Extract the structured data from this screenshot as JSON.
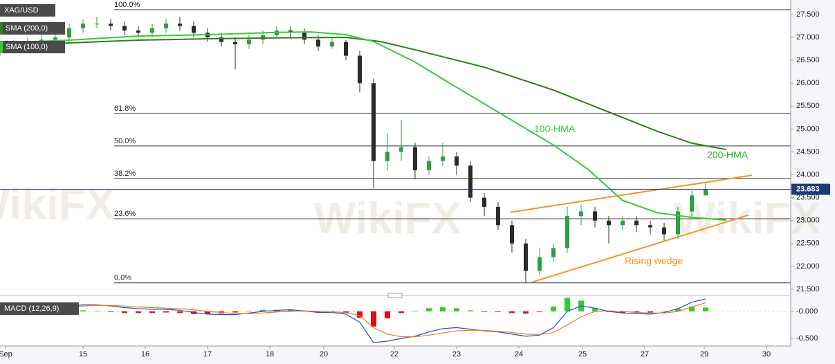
{
  "chart_data": [
    {
      "type": "candlestick",
      "title": "XAG/USD",
      "x": [
        0,
        2,
        4,
        6,
        8,
        10,
        12,
        14,
        16,
        18,
        20,
        22,
        24,
        26,
        28,
        30,
        32,
        34,
        36,
        38,
        40,
        42,
        44,
        46,
        48,
        50,
        52,
        54,
        56,
        58,
        60,
        62,
        64,
        66,
        68,
        70,
        72,
        74,
        76,
        78,
        80,
        82,
        84,
        86,
        88,
        90,
        92,
        94,
        96,
        98,
        100,
        102
      ],
      "open": [
        26.7,
        26.75,
        26.85,
        26.9,
        26.95,
        27.0,
        27.2,
        27.3,
        27.3,
        27.25,
        27.15,
        27.1,
        27.2,
        27.3,
        27.25,
        27.1,
        27.0,
        26.9,
        26.85,
        26.95,
        27.05,
        27.15,
        27.1,
        26.95,
        26.8,
        26.9,
        26.6,
        26.0,
        24.3,
        24.5,
        24.6,
        24.1,
        24.3,
        24.4,
        24.2,
        23.5,
        23.3,
        22.9,
        22.5,
        21.9,
        22.2,
        22.4,
        23.1,
        23.2,
        23.0,
        22.9,
        23.0,
        22.9,
        22.85,
        22.7,
        23.2,
        23.55
      ],
      "high": [
        26.85,
        26.95,
        27.0,
        27.05,
        27.1,
        27.3,
        27.4,
        27.45,
        27.4,
        27.35,
        27.25,
        27.3,
        27.4,
        27.45,
        27.35,
        27.2,
        27.1,
        27.0,
        27.05,
        27.15,
        27.25,
        27.25,
        27.2,
        27.05,
        27.0,
        26.95,
        26.7,
        26.1,
        24.9,
        25.2,
        24.7,
        24.4,
        24.7,
        24.5,
        24.3,
        23.6,
        23.4,
        23.0,
        22.6,
        22.4,
        22.5,
        23.3,
        23.35,
        23.3,
        23.1,
        23.1,
        23.1,
        23.0,
        22.95,
        23.3,
        23.65,
        23.85
      ],
      "low": [
        26.6,
        26.65,
        26.75,
        26.8,
        26.85,
        26.9,
        27.1,
        27.2,
        27.15,
        27.05,
        27.0,
        27.0,
        27.1,
        27.15,
        27.0,
        26.9,
        26.8,
        26.3,
        26.75,
        26.85,
        27.0,
        27.0,
        26.85,
        26.7,
        26.75,
        26.5,
        25.8,
        23.7,
        24.1,
        24.3,
        23.9,
        24.0,
        24.2,
        24.0,
        23.4,
        23.1,
        22.8,
        22.3,
        21.65,
        21.8,
        22.1,
        22.3,
        22.9,
        22.85,
        22.5,
        22.8,
        22.75,
        22.7,
        22.55,
        22.6,
        23.1,
        23.55
      ],
      "close": [
        26.75,
        26.85,
        26.9,
        26.95,
        27.0,
        27.2,
        27.3,
        27.3,
        27.25,
        27.15,
        27.1,
        27.2,
        27.3,
        27.25,
        27.1,
        27.0,
        26.9,
        26.85,
        26.95,
        27.05,
        27.15,
        27.1,
        26.95,
        26.8,
        26.9,
        26.6,
        26.0,
        24.3,
        24.5,
        24.6,
        24.1,
        24.3,
        24.4,
        24.2,
        23.5,
        23.3,
        22.9,
        22.5,
        21.9,
        22.2,
        22.4,
        23.1,
        23.2,
        23.0,
        22.9,
        23.0,
        22.9,
        22.85,
        22.7,
        23.2,
        23.55,
        23.68
      ],
      "up_color": "#2ea043",
      "down_color": "#2b2b2b",
      "series": [
        {
          "name": "SMA (200,0)",
          "color": "#2f7d1f",
          "x": [
            0,
            10,
            20,
            30,
            40,
            50,
            55,
            60,
            70,
            80,
            90,
            95,
            100,
            105
          ],
          "values": [
            26.82,
            26.88,
            26.94,
            26.97,
            26.99,
            27.0,
            26.91,
            26.73,
            26.35,
            25.85,
            25.25,
            24.95,
            24.69,
            24.55
          ]
        },
        {
          "name": "SMA (100,0)",
          "color": "#33cc33",
          "x": [
            0,
            10,
            20,
            30,
            40,
            45,
            50,
            54,
            60,
            65,
            70,
            75,
            80,
            85,
            90,
            95,
            100,
            105
          ],
          "values": [
            26.88,
            26.94,
            27.03,
            27.06,
            27.11,
            27.12,
            27.06,
            26.91,
            26.46,
            26.0,
            25.55,
            25.1,
            24.65,
            24.12,
            23.44,
            23.17,
            23.07,
            23.01
          ]
        }
      ],
      "fib_levels": [
        {
          "label": "100.0%",
          "value": 27.605
        },
        {
          "label": "61.8%",
          "value": 25.34
        },
        {
          "label": "50.0%",
          "value": 24.63
        },
        {
          "label": "38.2%",
          "value": 23.92
        },
        {
          "label": "23.6%",
          "value": 23.04
        },
        {
          "label": "0.0%",
          "value": 21.64
        }
      ],
      "fib_start": 16.5,
      "trendlines": [
        {
          "color": "#f7941d",
          "x": [
            73.7,
            108.7
          ],
          "values": [
            23.18,
            23.99
          ]
        },
        {
          "color": "#f7941d",
          "x": [
            76.8,
            108.2
          ],
          "values": [
            21.65,
            23.12
          ]
        }
      ],
      "annotations": [
        {
          "text": "100-HMA",
          "x": 77.2,
          "y": 24.99,
          "color": "#33cc33"
        },
        {
          "text": "200-HMA",
          "x": 102.2,
          "y": 24.42,
          "color": "#33aa33"
        },
        {
          "text": "Rising wedge",
          "x": 90.3,
          "y": 22.11,
          "color": "#f7941d"
        }
      ],
      "last_price": {
        "value": 23.683,
        "label": "23.683"
      },
      "watermark": "WikiFX",
      "xlim": [
        0,
        114.3
      ],
      "ylim": [
        21.394,
        27.817
      ],
      "yticks": [
        {
          "value": 27.5,
          "label": "27.500"
        },
        {
          "value": 27.0,
          "label": "27.000"
        },
        {
          "value": 26.5,
          "label": "26.500"
        },
        {
          "value": 26.0,
          "label": "26.000"
        },
        {
          "value": 25.5,
          "label": "25.500"
        },
        {
          "value": 25.0,
          "label": "25.000"
        },
        {
          "value": 24.5,
          "label": "24.500"
        },
        {
          "value": 24.0,
          "label": "24.000"
        },
        {
          "value": 23.5,
          "label": "23.500"
        },
        {
          "value": 23.0,
          "label": "23.000"
        },
        {
          "value": 22.5,
          "label": "22.500"
        },
        {
          "value": 22.0,
          "label": "22.000"
        },
        {
          "value": 21.5,
          "label": "21.500"
        }
      ]
    },
    {
      "type": "macd",
      "title": "MACD (12,26,9)",
      "x": [
        0,
        2,
        4,
        6,
        8,
        10,
        12,
        14,
        16,
        18,
        20,
        22,
        24,
        26,
        28,
        30,
        32,
        34,
        36,
        38,
        40,
        42,
        44,
        46,
        48,
        50,
        52,
        54,
        56,
        58,
        60,
        62,
        64,
        66,
        68,
        70,
        72,
        74,
        76,
        78,
        80,
        82,
        84,
        86,
        88,
        90,
        92,
        94,
        96,
        98,
        100,
        102
      ],
      "histogram": [
        0,
        0.01,
        0.02,
        0.02,
        0.02,
        0.02,
        0.02,
        0.01,
        -0.01,
        -0.03,
        -0.03,
        -0.03,
        -0.02,
        -0.03,
        -0.05,
        -0.05,
        -0.04,
        -0.02,
        0.01,
        0.03,
        0.03,
        0.03,
        0,
        -0.02,
        -0.01,
        -0.03,
        -0.12,
        -0.28,
        -0.13,
        -0.03,
        0.01,
        0.06,
        0.08,
        0.06,
        0.02,
        -0.01,
        -0.01,
        -0.03,
        -0.04,
        -0.01,
        0.09,
        0.25,
        0.2,
        0.06,
        -0.01,
        -0.03,
        -0.02,
        -0.02,
        0.01,
        0.05,
        0.09,
        0.07
      ],
      "up_color": "#33cc33",
      "down_color": "#e01010",
      "series": [
        {
          "color": "#1f4fd8",
          "values": [
            0,
            0.02,
            0.05,
            0.07,
            0.09,
            0.1,
            0.12,
            0.12,
            0.1,
            0.07,
            0.05,
            0.04,
            0.04,
            0.02,
            -0.02,
            -0.05,
            -0.06,
            -0.06,
            -0.03,
            0,
            0.02,
            0.03,
            0.01,
            -0.02,
            -0.02,
            -0.05,
            -0.2,
            -0.58,
            -0.55,
            -0.5,
            -0.46,
            -0.38,
            -0.32,
            -0.3,
            -0.33,
            -0.36,
            -0.38,
            -0.42,
            -0.46,
            -0.44,
            -0.3,
            0,
            0.1,
            0.06,
            0,
            -0.03,
            -0.04,
            -0.05,
            -0.02,
            0.05,
            0.17,
            0.23
          ]
        },
        {
          "color": "#f07a1a",
          "values": [
            0,
            0.01,
            0.03,
            0.05,
            0.07,
            0.08,
            0.1,
            0.11,
            0.11,
            0.1,
            0.08,
            0.07,
            0.06,
            0.05,
            0.03,
            0,
            -0.02,
            -0.04,
            -0.04,
            -0.03,
            -0.01,
            0,
            0.01,
            0,
            -0.01,
            -0.02,
            -0.08,
            -0.3,
            -0.42,
            -0.47,
            -0.47,
            -0.44,
            -0.4,
            -0.36,
            -0.35,
            -0.35,
            -0.37,
            -0.39,
            -0.42,
            -0.43,
            -0.39,
            -0.25,
            -0.1,
            0,
            0.01,
            0,
            -0.02,
            -0.03,
            -0.03,
            0,
            0.08,
            0.16
          ]
        }
      ],
      "xlim": [
        0,
        114.3
      ],
      "ylim": [
        -0.641,
        0.256
      ],
      "yticks": [
        {
          "value": 0,
          "label": "-0.000"
        },
        {
          "value": -0.5,
          "label": "-0.500"
        }
      ],
      "xticks": [
        {
          "value": 0.8,
          "label": "Sep"
        },
        {
          "value": 12,
          "label": "15"
        },
        {
          "value": 21,
          "label": "16"
        },
        {
          "value": 30,
          "label": "17"
        },
        {
          "value": 39,
          "label": "18"
        },
        {
          "value": 46.8,
          "label": "20"
        },
        {
          "value": 57,
          "label": "22"
        },
        {
          "value": 66,
          "label": "23"
        },
        {
          "value": 75,
          "label": "24"
        },
        {
          "value": 84.2,
          "label": "25"
        },
        {
          "value": 93.2,
          "label": "27"
        },
        {
          "value": 101.8,
          "label": "29"
        },
        {
          "value": 110.8,
          "label": "30"
        }
      ]
    }
  ]
}
